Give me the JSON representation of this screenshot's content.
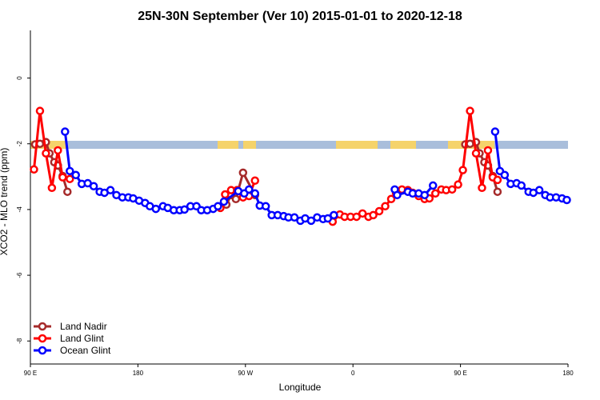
{
  "chart_data": {
    "type": "line",
    "title": "25N-30N September (Ver 10)   2015-01-01 to 2020-12-18",
    "x_label": "Longitude",
    "y_label": "XCO2 - MLO trend (ppm)",
    "xlim": [
      90,
      540
    ],
    "ylim": [
      -8.7,
      1.45
    ],
    "xticks": [
      {
        "value": 90,
        "label": "90 E"
      },
      {
        "value": 180,
        "label": "180"
      },
      {
        "value": 270,
        "label": "90 W"
      },
      {
        "value": 360,
        "label": "0"
      },
      {
        "value": 450,
        "label": "90 E"
      },
      {
        "value": 540,
        "label": "180"
      }
    ],
    "yticks": [
      0,
      -2,
      -4,
      -6,
      -8
    ],
    "legend": "bottom-left",
    "series": [
      {
        "name": "Land Nadir",
        "color": "#a52a2a",
        "x": [
          94,
          98,
          103,
          106,
          110,
          113,
          117,
          121,
          190,
          254,
          258,
          262,
          268,
          278,
          360,
          454,
          458,
          463,
          466,
          470,
          473,
          477,
          481
        ],
        "values": [
          -2.02,
          -2.0,
          -1.95,
          -2.29,
          -2.56,
          -2.66,
          -2.98,
          -3.46,
          null,
          -3.85,
          -3.56,
          -3.68,
          -2.88,
          -3.56,
          null,
          -2.02,
          -2.0,
          -1.95,
          -2.29,
          -2.56,
          -2.66,
          -2.98,
          -3.46
        ]
      },
      {
        "name": "Land Glint",
        "color": "#ff0000",
        "x": [
          93,
          98,
          103,
          108,
          113,
          117,
          123,
          190,
          249,
          253,
          258,
          263,
          268,
          273,
          278,
          310,
          343,
          349,
          353,
          358,
          363,
          368,
          373,
          377,
          382,
          387,
          392,
          396,
          401,
          406,
          410,
          415,
          420,
          424,
          429,
          434,
          438,
          443,
          448,
          452,
          458,
          463,
          468,
          473,
          477,
          481
        ],
        "values": [
          -2.78,
          -1.0,
          -2.29,
          -3.34,
          -2.2,
          -3.02,
          -3.07,
          null,
          -3.95,
          -3.54,
          -3.41,
          -3.41,
          -3.63,
          -3.59,
          -3.12,
          null,
          -4.37,
          -4.15,
          -4.22,
          -4.22,
          -4.22,
          -4.12,
          -4.22,
          -4.17,
          -4.05,
          -3.9,
          -3.68,
          -3.49,
          -3.39,
          -3.41,
          -3.49,
          -3.59,
          -3.68,
          -3.66,
          -3.51,
          -3.39,
          -3.41,
          -3.39,
          -3.24,
          -2.8,
          -1.0,
          -2.29,
          -3.34,
          -2.2,
          -3.02,
          -3.1
        ]
      },
      {
        "name": "Ocean Glint",
        "color": "#0000ff",
        "x": [
          119,
          123,
          128,
          133,
          138,
          143,
          148,
          152,
          157,
          162,
          167,
          172,
          176,
          181,
          186,
          190,
          195,
          201,
          205,
          210,
          215,
          219,
          224,
          229,
          233,
          238,
          243,
          247,
          252,
          264,
          269,
          273,
          278,
          282,
          287,
          292,
          297,
          302,
          306,
          311,
          316,
          320,
          325,
          330,
          335,
          339,
          344,
          370,
          395,
          397,
          406,
          410,
          415,
          420,
          427,
          460,
          479,
          483,
          487,
          492,
          497,
          501,
          507,
          511,
          516,
          521,
          525,
          530,
          535,
          539
        ],
        "values": [
          -1.63,
          -2.83,
          -2.95,
          -3.22,
          -3.2,
          -3.29,
          -3.46,
          -3.49,
          -3.41,
          -3.56,
          -3.63,
          -3.63,
          -3.66,
          -3.73,
          -3.8,
          -3.9,
          -3.98,
          -3.9,
          -3.95,
          -4.02,
          -4.02,
          -4.0,
          -3.9,
          -3.9,
          -4.02,
          -4.02,
          -3.98,
          -3.9,
          -3.76,
          -3.44,
          -3.51,
          -3.39,
          -3.51,
          -3.88,
          -3.9,
          -4.17,
          -4.17,
          -4.2,
          -4.24,
          -4.24,
          -4.34,
          -4.27,
          -4.34,
          -4.24,
          -4.29,
          -4.27,
          -4.17,
          null,
          -3.39,
          -3.56,
          -3.46,
          -3.51,
          -3.51,
          -3.56,
          -3.27,
          null,
          -1.63,
          -2.83,
          -2.95,
          -3.22,
          -3.2,
          -3.27,
          -3.46,
          -3.49,
          -3.41,
          -3.56,
          -3.63,
          -3.63,
          -3.66,
          -3.71
        ]
      }
    ]
  }
}
